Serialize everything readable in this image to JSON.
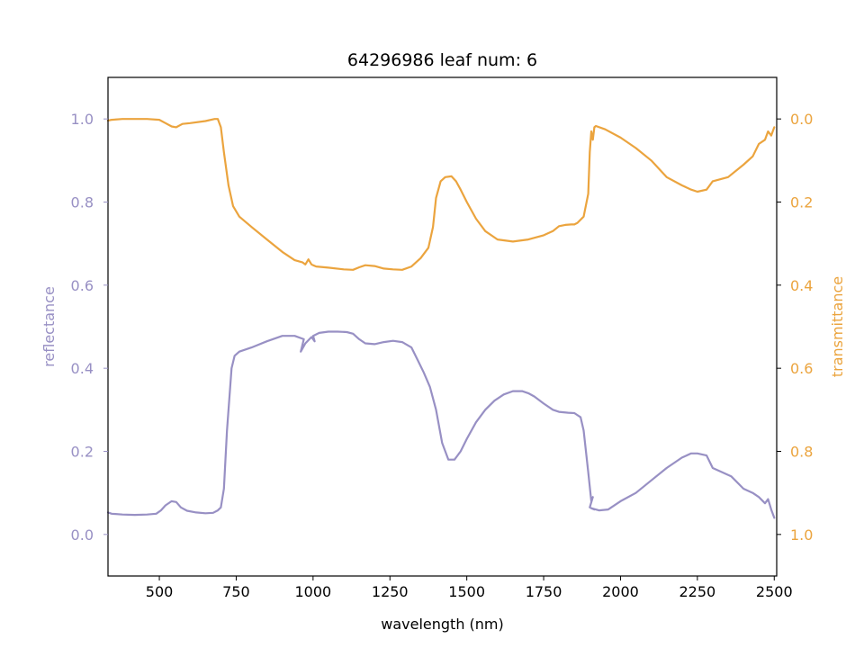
{
  "chart_data": {
    "type": "line",
    "title": "64296986 leaf num: 6",
    "xlabel": "wavelength (nm)",
    "ylabel_left": "reflectance",
    "ylabel_right": "transmittance",
    "xlim": [
      333,
      2508
    ],
    "ylim_left": [
      -0.1,
      1.1
    ],
    "ylim_right": [
      1.1,
      -0.1
    ],
    "right_axis_inverted": true,
    "x_ticks": [
      500,
      750,
      1000,
      1250,
      1500,
      1750,
      2000,
      2250,
      2500
    ],
    "x_tick_labels": [
      "500",
      "750",
      "1000",
      "1250",
      "1500",
      "1750",
      "2000",
      "2250",
      "2500"
    ],
    "y_left_ticks": [
      0.0,
      0.2,
      0.4,
      0.6,
      0.8,
      1.0
    ],
    "y_left_tick_labels": [
      "0.0",
      "0.2",
      "0.4",
      "0.6",
      "0.8",
      "1.0"
    ],
    "y_right_ticks": [
      0.0,
      0.2,
      0.4,
      0.6,
      0.8,
      1.0
    ],
    "y_right_tick_labels": [
      "0.0",
      "0.2",
      "0.4",
      "0.6",
      "0.8",
      "1.0"
    ],
    "grid": false,
    "colors": {
      "reflectance": "#9890c4",
      "transmittance": "#eba43e",
      "axes": "#000000"
    },
    "series": [
      {
        "axis": "left",
        "color": "#9890c4",
        "x": [
          333,
          345,
          380,
          420,
          460,
          490,
          505,
          520,
          540,
          555,
          570,
          590,
          620,
          650,
          675,
          690,
          700,
          710,
          720,
          735,
          745,
          760,
          800,
          850,
          900,
          940,
          970,
          960,
          975,
          995,
          1005,
          1000,
          1020,
          1050,
          1080,
          1110,
          1130,
          1150,
          1170,
          1200,
          1230,
          1260,
          1290,
          1320,
          1340,
          1360,
          1380,
          1400,
          1420,
          1440,
          1460,
          1480,
          1500,
          1530,
          1560,
          1590,
          1620,
          1650,
          1680,
          1700,
          1720,
          1750,
          1780,
          1800,
          1830,
          1850,
          1870,
          1880,
          1895,
          1905,
          1910,
          1900,
          1915,
          1905,
          1930,
          1960,
          2000,
          2050,
          2100,
          2150,
          2200,
          2230,
          2250,
          2280,
          2300,
          2330,
          2360,
          2400,
          2430,
          2450,
          2470,
          2480,
          2490,
          2500
        ],
        "values": [
          0.053,
          0.05,
          0.048,
          0.047,
          0.048,
          0.05,
          0.058,
          0.07,
          0.08,
          0.078,
          0.065,
          0.057,
          0.053,
          0.051,
          0.052,
          0.058,
          0.065,
          0.11,
          0.25,
          0.4,
          0.43,
          0.44,
          0.45,
          0.465,
          0.478,
          0.478,
          0.47,
          0.44,
          0.46,
          0.475,
          0.465,
          0.478,
          0.485,
          0.488,
          0.488,
          0.487,
          0.483,
          0.47,
          0.46,
          0.458,
          0.463,
          0.466,
          0.463,
          0.45,
          0.42,
          0.39,
          0.355,
          0.3,
          0.22,
          0.18,
          0.18,
          0.2,
          0.23,
          0.27,
          0.3,
          0.322,
          0.337,
          0.345,
          0.345,
          0.34,
          0.332,
          0.315,
          0.3,
          0.295,
          0.293,
          0.292,
          0.282,
          0.25,
          0.15,
          0.08,
          0.09,
          0.065,
          0.06,
          0.063,
          0.058,
          0.06,
          0.08,
          0.1,
          0.13,
          0.16,
          0.185,
          0.195,
          0.195,
          0.19,
          0.16,
          0.15,
          0.14,
          0.11,
          0.1,
          0.09,
          0.075,
          0.085,
          0.06,
          0.04
        ]
      },
      {
        "axis": "right",
        "color": "#eba43e",
        "x": [
          333,
          345,
          380,
          420,
          460,
          500,
          520,
          540,
          555,
          575,
          600,
          650,
          680,
          690,
          700,
          710,
          725,
          740,
          760,
          800,
          850,
          900,
          940,
          965,
          975,
          985,
          995,
          1000,
          1010,
          1050,
          1100,
          1130,
          1150,
          1170,
          1200,
          1230,
          1260,
          1290,
          1320,
          1350,
          1375,
          1390,
          1400,
          1415,
          1430,
          1450,
          1465,
          1480,
          1500,
          1530,
          1560,
          1600,
          1650,
          1700,
          1750,
          1780,
          1800,
          1820,
          1840,
          1850,
          1860,
          1880,
          1895,
          1900,
          1905,
          1910,
          1915,
          1920,
          1950,
          2000,
          2050,
          2100,
          2150,
          2200,
          2230,
          2250,
          2280,
          2300,
          2350,
          2400,
          2430,
          2450,
          2470,
          2480,
          2490,
          2500
        ],
        "values": [
          0.004,
          0.002,
          0.0,
          0.0,
          0.0,
          0.002,
          0.01,
          0.018,
          0.02,
          0.012,
          0.01,
          0.005,
          0.0,
          0.0,
          0.02,
          0.08,
          0.16,
          0.21,
          0.235,
          0.26,
          0.29,
          0.32,
          0.34,
          0.345,
          0.35,
          0.338,
          0.35,
          0.352,
          0.355,
          0.358,
          0.362,
          0.363,
          0.357,
          0.352,
          0.354,
          0.36,
          0.362,
          0.363,
          0.355,
          0.335,
          0.31,
          0.26,
          0.19,
          0.15,
          0.14,
          0.138,
          0.15,
          0.17,
          0.2,
          0.24,
          0.27,
          0.29,
          0.295,
          0.29,
          0.28,
          0.27,
          0.258,
          0.255,
          0.254,
          0.254,
          0.25,
          0.235,
          0.18,
          0.08,
          0.03,
          0.05,
          0.02,
          0.017,
          0.025,
          0.045,
          0.07,
          0.1,
          0.14,
          0.16,
          0.17,
          0.175,
          0.17,
          0.15,
          0.14,
          0.11,
          0.09,
          0.06,
          0.05,
          0.03,
          0.04,
          0.02
        ]
      }
    ]
  }
}
